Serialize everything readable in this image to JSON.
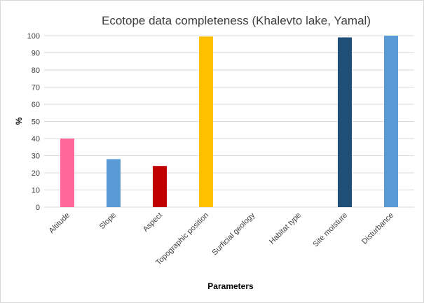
{
  "chart_data": {
    "type": "bar",
    "title": "Ecotope data completeness (Khalevto lake, Yamal)",
    "xlabel": "Parameters",
    "ylabel": "%",
    "ylim": [
      0,
      100
    ],
    "yticks": [
      0,
      10,
      20,
      30,
      40,
      50,
      60,
      70,
      80,
      90,
      100
    ],
    "grid": true,
    "legend": "none",
    "categories": [
      "Altitude",
      "Slope",
      "Aspect",
      "Topographic position",
      "Surficial geology",
      "Habitat type",
      "Site moisture",
      "Disturbance"
    ],
    "values": [
      40,
      28,
      24,
      99.5,
      0,
      0,
      99,
      100
    ],
    "colors": [
      "#ff6699",
      "#5b9bd5",
      "#c00000",
      "#ffc000",
      "#5b9bd5",
      "#5b9bd5",
      "#1f4e79",
      "#5b9bd5"
    ]
  }
}
